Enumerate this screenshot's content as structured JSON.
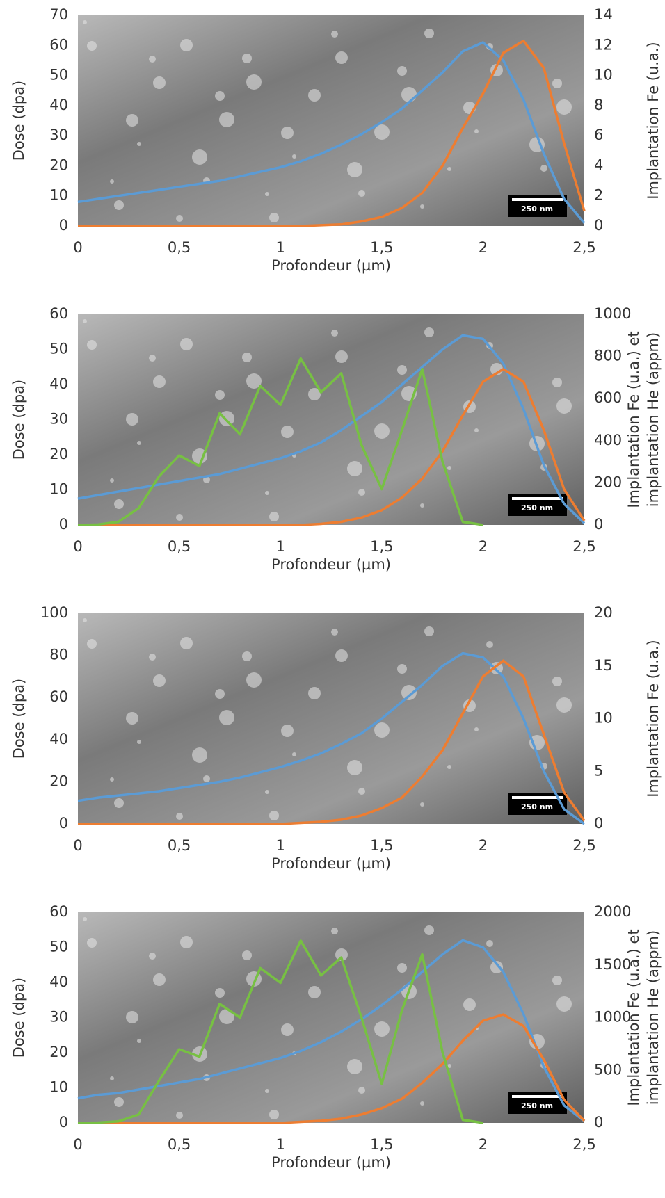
{
  "chart_data": [
    {
      "type": "line",
      "scale_bar": "250 nm",
      "xlabel": "Profondeur (µm)",
      "ylabel": "Dose (dpa)",
      "y2label": [
        "Implantation Fe (u.a.)"
      ],
      "xlim": [
        0,
        2.5
      ],
      "xticks": [
        0,
        {
          "value": 0.5,
          "label": "0,5"
        },
        1,
        {
          "value": 1.5,
          "label": "1,5"
        },
        2,
        {
          "value": 2.5,
          "label": "2,5"
        }
      ],
      "ylim": [
        0,
        70
      ],
      "yticks": [
        0,
        10,
        20,
        30,
        40,
        50,
        60,
        70
      ],
      "y2lim": [
        0,
        14
      ],
      "y2ticks": [
        0,
        2,
        4,
        6,
        8,
        10,
        12,
        14
      ],
      "x": [
        0,
        0.1,
        0.2,
        0.3,
        0.4,
        0.5,
        0.6,
        0.7,
        0.8,
        0.9,
        1.0,
        1.1,
        1.2,
        1.3,
        1.4,
        1.5,
        1.6,
        1.7,
        1.8,
        1.9,
        2.0,
        2.1,
        2.2,
        2.3,
        2.4,
        2.5
      ],
      "series": [
        {
          "color": "#5b9bd5",
          "values": [
            8,
            9,
            10,
            11,
            12,
            13,
            14,
            15,
            16.5,
            18,
            19.5,
            21.5,
            24,
            27,
            30.5,
            34.5,
            39,
            45,
            51,
            58,
            61,
            55,
            42,
            24,
            9,
            1
          ]
        },
        {
          "color": "#ed7d31",
          "axis": "y2",
          "values": [
            0,
            0,
            0,
            0,
            0,
            0,
            0,
            0,
            0,
            0,
            0,
            0,
            0.05,
            0.1,
            0.3,
            0.6,
            1.2,
            2.2,
            4,
            6.5,
            8.8,
            11.5,
            12.3,
            10.5,
            5.5,
            1
          ]
        }
      ]
    },
    {
      "type": "line",
      "scale_bar": "250 nm",
      "xlabel": "Profondeur (µm)",
      "ylabel": "Dose (dpa)",
      "y2label": [
        "Implantation Fe (u.a.) et",
        "implantation He (appm)"
      ],
      "xlim": [
        0,
        2.5
      ],
      "xticks": [
        0,
        {
          "value": 0.5,
          "label": "0,5"
        },
        1,
        {
          "value": 1.5,
          "label": "1,5"
        },
        2,
        {
          "value": 2.5,
          "label": "2,5"
        }
      ],
      "ylim": [
        0,
        60
      ],
      "yticks": [
        0,
        10,
        20,
        30,
        40,
        50,
        60
      ],
      "y2lim": [
        0,
        1000
      ],
      "y2ticks": [
        0,
        200,
        400,
        600,
        800,
        1000
      ],
      "x": [
        0,
        0.1,
        0.2,
        0.3,
        0.4,
        0.5,
        0.6,
        0.7,
        0.8,
        0.9,
        1.0,
        1.1,
        1.2,
        1.3,
        1.4,
        1.5,
        1.6,
        1.7,
        1.8,
        1.9,
        2.0,
        2.1,
        2.2,
        2.3,
        2.4,
        2.5
      ],
      "series": [
        {
          "color": "#5b9bd5",
          "values": [
            7.5,
            8.5,
            9.5,
            10.5,
            11.5,
            12.5,
            13.5,
            14.5,
            16,
            17.5,
            19,
            21,
            23.5,
            27,
            31,
            35,
            40,
            45,
            50,
            54,
            53,
            46,
            33,
            17,
            6,
            0.5
          ]
        },
        {
          "color": "#ed7d31",
          "axis": "y2",
          "values": [
            0,
            0,
            0,
            0,
            0,
            0,
            0,
            0,
            0,
            0,
            0,
            0,
            5,
            15,
            35,
            70,
            130,
            220,
            350,
            520,
            680,
            740,
            680,
            450,
            170,
            20
          ]
        },
        {
          "color": "#77c043",
          "axis": "y2",
          "values": [
            0,
            2,
            15,
            80,
            230,
            330,
            280,
            530,
            430,
            660,
            570,
            790,
            630,
            720,
            380,
            170,
            450,
            740,
            300,
            15,
            0,
            null,
            null,
            null,
            null,
            null
          ]
        }
      ]
    },
    {
      "type": "line",
      "scale_bar": "250 nm",
      "xlabel": "Profondeur (µm)",
      "ylabel": "Dose (dpa)",
      "y2label": [
        "Implantation Fe (u.a.)"
      ],
      "xlim": [
        0,
        2.5
      ],
      "xticks": [
        0,
        {
          "value": 0.5,
          "label": "0,5"
        },
        1,
        {
          "value": 1.5,
          "label": "1,5"
        },
        2,
        {
          "value": 2.5,
          "label": "2,5"
        }
      ],
      "ylim": [
        0,
        100
      ],
      "yticks": [
        0,
        20,
        40,
        60,
        80,
        100
      ],
      "y2lim": [
        0,
        20
      ],
      "y2ticks": [
        0,
        5,
        10,
        15,
        20
      ],
      "x": [
        0,
        0.1,
        0.2,
        0.3,
        0.4,
        0.5,
        0.6,
        0.7,
        0.8,
        0.9,
        1.0,
        1.1,
        1.2,
        1.3,
        1.4,
        1.5,
        1.6,
        1.7,
        1.8,
        1.9,
        2.0,
        2.1,
        2.2,
        2.3,
        2.4,
        2.5
      ],
      "series": [
        {
          "color": "#5b9bd5",
          "values": [
            11,
            12.5,
            13.5,
            14.5,
            15.5,
            17,
            18.5,
            20,
            22,
            24.5,
            27,
            30,
            33.5,
            38,
            43,
            50,
            58,
            66,
            75,
            81,
            79,
            70,
            50,
            25,
            7,
            0
          ]
        },
        {
          "color": "#ed7d31",
          "axis": "y2",
          "values": [
            0,
            0,
            0,
            0,
            0,
            0,
            0,
            0,
            0,
            0,
            0,
            0.1,
            0.2,
            0.4,
            0.8,
            1.5,
            2.5,
            4.5,
            7,
            10.5,
            14,
            15.5,
            14,
            8.5,
            3,
            0.3
          ]
        }
      ]
    },
    {
      "type": "line",
      "scale_bar": "250 nm",
      "xlabel": "Profondeur (µm)",
      "ylabel": "Dose (dpa)",
      "y2label": [
        "Implantation Fe (u.a.) et",
        "implantation He (appm)"
      ],
      "xlim": [
        0,
        2.5
      ],
      "xticks": [
        0,
        {
          "value": 0.5,
          "label": "0,5"
        },
        1,
        {
          "value": 1.5,
          "label": "1,5"
        },
        2,
        {
          "value": 2.5,
          "label": "2,5"
        }
      ],
      "ylim": [
        0,
        60
      ],
      "yticks": [
        0,
        10,
        20,
        30,
        40,
        50,
        60
      ],
      "y2lim": [
        0,
        2000
      ],
      "y2ticks": [
        0,
        500,
        1000,
        1500,
        2000
      ],
      "x": [
        0,
        0.1,
        0.2,
        0.3,
        0.4,
        0.5,
        0.6,
        0.7,
        0.8,
        0.9,
        1.0,
        1.1,
        1.2,
        1.3,
        1.4,
        1.5,
        1.6,
        1.7,
        1.8,
        1.9,
        2.0,
        2.1,
        2.2,
        2.3,
        2.4,
        2.5
      ],
      "series": [
        {
          "color": "#5b9bd5",
          "values": [
            7,
            8,
            8.5,
            9.5,
            10.5,
            11.5,
            12.5,
            14,
            15.5,
            17,
            18.5,
            20.5,
            23,
            26,
            29.5,
            33.5,
            38,
            43,
            48,
            52,
            50,
            43,
            31,
            16,
            5,
            0.5
          ]
        },
        {
          "color": "#ed7d31",
          "axis": "y2",
          "values": [
            0,
            0,
            0,
            0,
            0,
            0,
            0,
            0,
            0,
            0,
            0,
            10,
            20,
            40,
            80,
            140,
            230,
            380,
            560,
            780,
            970,
            1030,
            920,
            600,
            220,
            20
          ]
        },
        {
          "color": "#77c043",
          "axis": "y2",
          "values": [
            0,
            3,
            15,
            80,
            400,
            700,
            630,
            1130,
            1000,
            1470,
            1330,
            1730,
            1400,
            1570,
            1000,
            370,
            1070,
            1600,
            670,
            30,
            0,
            null,
            null,
            null,
            null,
            null
          ]
        }
      ]
    }
  ]
}
